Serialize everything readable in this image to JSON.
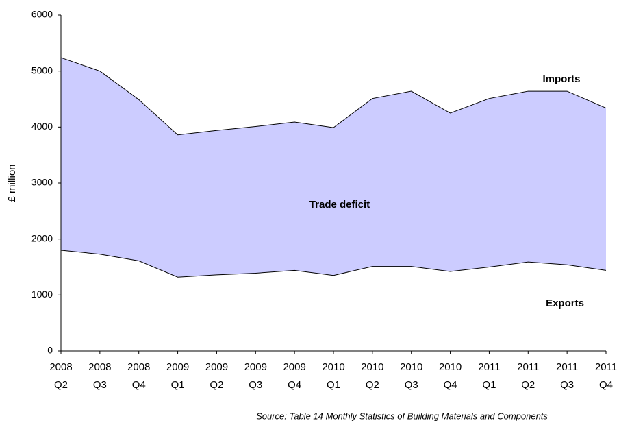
{
  "chart_data": {
    "type": "area",
    "categories": [
      [
        "2008",
        "Q2"
      ],
      [
        "2008",
        "Q3"
      ],
      [
        "2008",
        "Q4"
      ],
      [
        "2009",
        "Q1"
      ],
      [
        "2009",
        "Q2"
      ],
      [
        "2009",
        "Q3"
      ],
      [
        "2009",
        "Q4"
      ],
      [
        "2010",
        "Q1"
      ],
      [
        "2010",
        "Q2"
      ],
      [
        "2010",
        "Q3"
      ],
      [
        "2010",
        "Q4"
      ],
      [
        "2011",
        "Q1"
      ],
      [
        "2011",
        "Q2"
      ],
      [
        "2011",
        "Q3"
      ],
      [
        "2011",
        "Q4"
      ]
    ],
    "series": [
      {
        "name": "Imports",
        "color": "#000000",
        "values": [
          5240,
          5000,
          4490,
          3860,
          3940,
          4010,
          4090,
          3990,
          4510,
          4640,
          4250,
          4510,
          4640,
          4640,
          4340
        ]
      },
      {
        "name": "Exports",
        "color": "#000000",
        "values": [
          1800,
          1730,
          1610,
          1320,
          1360,
          1390,
          1440,
          1350,
          1510,
          1510,
          1420,
          1500,
          1590,
          1540,
          1440
        ]
      }
    ],
    "fill_color": "#ccccff",
    "ylabel": "£ million",
    "ylim": [
      0,
      6000
    ],
    "yticks": [
      0,
      1000,
      2000,
      3000,
      4000,
      5000,
      6000
    ],
    "area_label": "Trade deficit",
    "source": "Source: Table 14 Monthly Statistics of Building Materials and Components",
    "grid": false
  }
}
